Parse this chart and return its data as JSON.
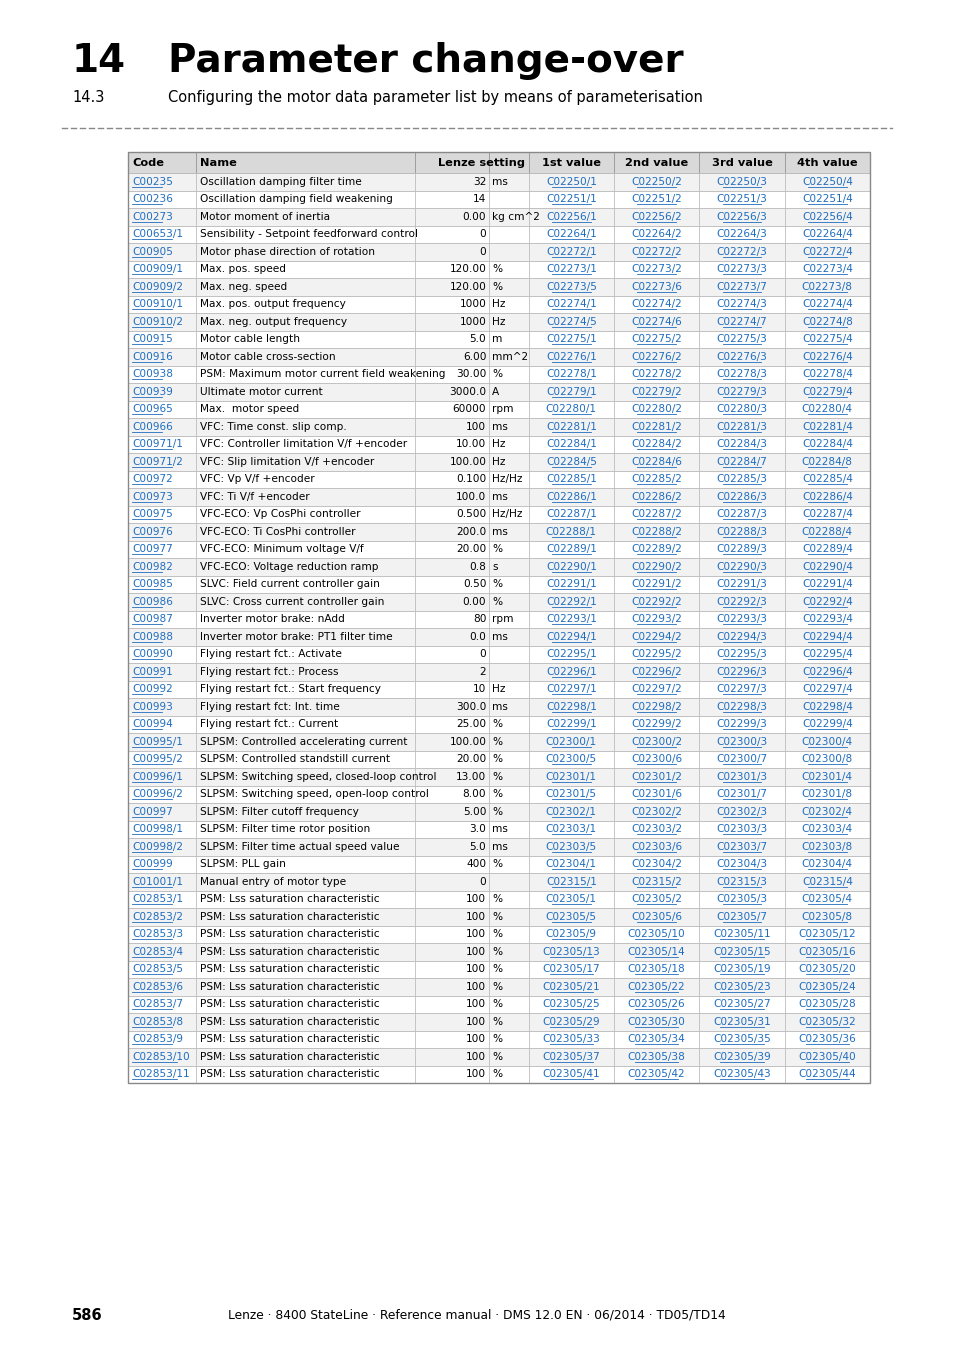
{
  "title_num": "14",
  "title_text": "Parameter change-over",
  "subtitle_num": "14.3",
  "subtitle_text": "Configuring the motor data parameter list by means of parameterisation",
  "footer_page": "586",
  "footer_text": "Lenze · 8400 StateLine · Reference manual · DMS 12.0 EN · 06/2014 · TD05/TD14",
  "header_bg": "#d9d9d9",
  "row_bg_odd": "#f2f2f2",
  "row_bg_even": "#ffffff",
  "link_color": "#1f6dbf",
  "text_color": "#000000",
  "rows": [
    [
      "C00235",
      "Oscillation damping filter time",
      "32",
      "ms",
      "C02250/1",
      "C02250/2",
      "C02250/3",
      "C02250/4"
    ],
    [
      "C00236",
      "Oscillation damping field weakening",
      "14",
      "",
      "C02251/1",
      "C02251/2",
      "C02251/3",
      "C02251/4"
    ],
    [
      "C00273",
      "Motor moment of inertia",
      "0.00",
      "kg cm^2",
      "C02256/1",
      "C02256/2",
      "C02256/3",
      "C02256/4"
    ],
    [
      "C00653/1",
      "Sensibility - Setpoint feedforward control",
      "0",
      "",
      "C02264/1",
      "C02264/2",
      "C02264/3",
      "C02264/4"
    ],
    [
      "C00905",
      "Motor phase direction of rotation",
      "0",
      "",
      "C02272/1",
      "C02272/2",
      "C02272/3",
      "C02272/4"
    ],
    [
      "C00909/1",
      "Max. pos. speed",
      "120.00",
      "%",
      "C02273/1",
      "C02273/2",
      "C02273/3",
      "C02273/4"
    ],
    [
      "C00909/2",
      "Max. neg. speed",
      "120.00",
      "%",
      "C02273/5",
      "C02273/6",
      "C02273/7",
      "C02273/8"
    ],
    [
      "C00910/1",
      "Max. pos. output frequency",
      "1000",
      "Hz",
      "C02274/1",
      "C02274/2",
      "C02274/3",
      "C02274/4"
    ],
    [
      "C00910/2",
      "Max. neg. output frequency",
      "1000",
      "Hz",
      "C02274/5",
      "C02274/6",
      "C02274/7",
      "C02274/8"
    ],
    [
      "C00915",
      "Motor cable length",
      "5.0",
      "m",
      "C02275/1",
      "C02275/2",
      "C02275/3",
      "C02275/4"
    ],
    [
      "C00916",
      "Motor cable cross-section",
      "6.00",
      "mm^2",
      "C02276/1",
      "C02276/2",
      "C02276/3",
      "C02276/4"
    ],
    [
      "C00938",
      "PSM: Maximum motor current field weakening",
      "30.00",
      "%",
      "C02278/1",
      "C02278/2",
      "C02278/3",
      "C02278/4"
    ],
    [
      "C00939",
      "Ultimate motor current",
      "3000.0",
      "A",
      "C02279/1",
      "C02279/2",
      "C02279/3",
      "C02279/4"
    ],
    [
      "C00965",
      "Max.  motor speed",
      "60000",
      "rpm",
      "C02280/1",
      "C02280/2",
      "C02280/3",
      "C02280/4"
    ],
    [
      "C00966",
      "VFC: Time const. slip comp.",
      "100",
      "ms",
      "C02281/1",
      "C02281/2",
      "C02281/3",
      "C02281/4"
    ],
    [
      "C00971/1",
      "VFC: Controller limitation V/f +encoder",
      "10.00",
      "Hz",
      "C02284/1",
      "C02284/2",
      "C02284/3",
      "C02284/4"
    ],
    [
      "C00971/2",
      "VFC: Slip limitation V/f +encoder",
      "100.00",
      "Hz",
      "C02284/5",
      "C02284/6",
      "C02284/7",
      "C02284/8"
    ],
    [
      "C00972",
      "VFC: Vp V/f +encoder",
      "0.100",
      "Hz/Hz",
      "C02285/1",
      "C02285/2",
      "C02285/3",
      "C02285/4"
    ],
    [
      "C00973",
      "VFC: Ti V/f +encoder",
      "100.0",
      "ms",
      "C02286/1",
      "C02286/2",
      "C02286/3",
      "C02286/4"
    ],
    [
      "C00975",
      "VFC-ECO: Vp CosPhi controller",
      "0.500",
      "Hz/Hz",
      "C02287/1",
      "C02287/2",
      "C02287/3",
      "C02287/4"
    ],
    [
      "C00976",
      "VFC-ECO: Ti CosPhi controller",
      "200.0",
      "ms",
      "C02288/1",
      "C02288/2",
      "C02288/3",
      "C02288/4"
    ],
    [
      "C00977",
      "VFC-ECO: Minimum voltage V/f",
      "20.00",
      "%",
      "C02289/1",
      "C02289/2",
      "C02289/3",
      "C02289/4"
    ],
    [
      "C00982",
      "VFC-ECO: Voltage reduction ramp",
      "0.8",
      "s",
      "C02290/1",
      "C02290/2",
      "C02290/3",
      "C02290/4"
    ],
    [
      "C00985",
      "SLVC: Field current controller gain",
      "0.50",
      "%",
      "C02291/1",
      "C02291/2",
      "C02291/3",
      "C02291/4"
    ],
    [
      "C00986",
      "SLVC: Cross current controller gain",
      "0.00",
      "%",
      "C02292/1",
      "C02292/2",
      "C02292/3",
      "C02292/4"
    ],
    [
      "C00987",
      "Inverter motor brake: nAdd",
      "80",
      "rpm",
      "C02293/1",
      "C02293/2",
      "C02293/3",
      "C02293/4"
    ],
    [
      "C00988",
      "Inverter motor brake: PT1 filter time",
      "0.0",
      "ms",
      "C02294/1",
      "C02294/2",
      "C02294/3",
      "C02294/4"
    ],
    [
      "C00990",
      "Flying restart fct.: Activate",
      "0",
      "",
      "C02295/1",
      "C02295/2",
      "C02295/3",
      "C02295/4"
    ],
    [
      "C00991",
      "Flying restart fct.: Process",
      "2",
      "",
      "C02296/1",
      "C02296/2",
      "C02296/3",
      "C02296/4"
    ],
    [
      "C00992",
      "Flying restart fct.: Start frequency",
      "10",
      "Hz",
      "C02297/1",
      "C02297/2",
      "C02297/3",
      "C02297/4"
    ],
    [
      "C00993",
      "Flying restart fct: Int. time",
      "300.0",
      "ms",
      "C02298/1",
      "C02298/2",
      "C02298/3",
      "C02298/4"
    ],
    [
      "C00994",
      "Flying restart fct.: Current",
      "25.00",
      "%",
      "C02299/1",
      "C02299/2",
      "C02299/3",
      "C02299/4"
    ],
    [
      "C00995/1",
      "SLPSM: Controlled accelerating current",
      "100.00",
      "%",
      "C02300/1",
      "C02300/2",
      "C02300/3",
      "C02300/4"
    ],
    [
      "C00995/2",
      "SLPSM: Controlled standstill current",
      "20.00",
      "%",
      "C02300/5",
      "C02300/6",
      "C02300/7",
      "C02300/8"
    ],
    [
      "C00996/1",
      "SLPSM: Switching speed, closed-loop control",
      "13.00",
      "%",
      "C02301/1",
      "C02301/2",
      "C02301/3",
      "C02301/4"
    ],
    [
      "C00996/2",
      "SLPSM: Switching speed, open-loop control",
      "8.00",
      "%",
      "C02301/5",
      "C02301/6",
      "C02301/7",
      "C02301/8"
    ],
    [
      "C00997",
      "SLPSM: Filter cutoff frequency",
      "5.00",
      "%",
      "C02302/1",
      "C02302/2",
      "C02302/3",
      "C02302/4"
    ],
    [
      "C00998/1",
      "SLPSM: Filter time rotor position",
      "3.0",
      "ms",
      "C02303/1",
      "C02303/2",
      "C02303/3",
      "C02303/4"
    ],
    [
      "C00998/2",
      "SLPSM: Filter time actual speed value",
      "5.0",
      "ms",
      "C02303/5",
      "C02303/6",
      "C02303/7",
      "C02303/8"
    ],
    [
      "C00999",
      "SLPSM: PLL gain",
      "400",
      "%",
      "C02304/1",
      "C02304/2",
      "C02304/3",
      "C02304/4"
    ],
    [
      "C01001/1",
      "Manual entry of motor type",
      "0",
      "",
      "C02315/1",
      "C02315/2",
      "C02315/3",
      "C02315/4"
    ],
    [
      "C02853/1",
      "PSM: Lss saturation characteristic",
      "100",
      "%",
      "C02305/1",
      "C02305/2",
      "C02305/3",
      "C02305/4"
    ],
    [
      "C02853/2",
      "PSM: Lss saturation characteristic",
      "100",
      "%",
      "C02305/5",
      "C02305/6",
      "C02305/7",
      "C02305/8"
    ],
    [
      "C02853/3",
      "PSM: Lss saturation characteristic",
      "100",
      "%",
      "C02305/9",
      "C02305/10",
      "C02305/11",
      "C02305/12"
    ],
    [
      "C02853/4",
      "PSM: Lss saturation characteristic",
      "100",
      "%",
      "C02305/13",
      "C02305/14",
      "C02305/15",
      "C02305/16"
    ],
    [
      "C02853/5",
      "PSM: Lss saturation characteristic",
      "100",
      "%",
      "C02305/17",
      "C02305/18",
      "C02305/19",
      "C02305/20"
    ],
    [
      "C02853/6",
      "PSM: Lss saturation characteristic",
      "100",
      "%",
      "C02305/21",
      "C02305/22",
      "C02305/23",
      "C02305/24"
    ],
    [
      "C02853/7",
      "PSM: Lss saturation characteristic",
      "100",
      "%",
      "C02305/25",
      "C02305/26",
      "C02305/27",
      "C02305/28"
    ],
    [
      "C02853/8",
      "PSM: Lss saturation characteristic",
      "100",
      "%",
      "C02305/29",
      "C02305/30",
      "C02305/31",
      "C02305/32"
    ],
    [
      "C02853/9",
      "PSM: Lss saturation characteristic",
      "100",
      "%",
      "C02305/33",
      "C02305/34",
      "C02305/35",
      "C02305/36"
    ],
    [
      "C02853/10",
      "PSM: Lss saturation characteristic",
      "100",
      "%",
      "C02305/37",
      "C02305/38",
      "C02305/39",
      "C02305/40"
    ],
    [
      "C02853/11",
      "PSM: Lss saturation characteristic",
      "100",
      "%",
      "C02305/41",
      "C02305/42",
      "C02305/43",
      "C02305/44"
    ]
  ]
}
